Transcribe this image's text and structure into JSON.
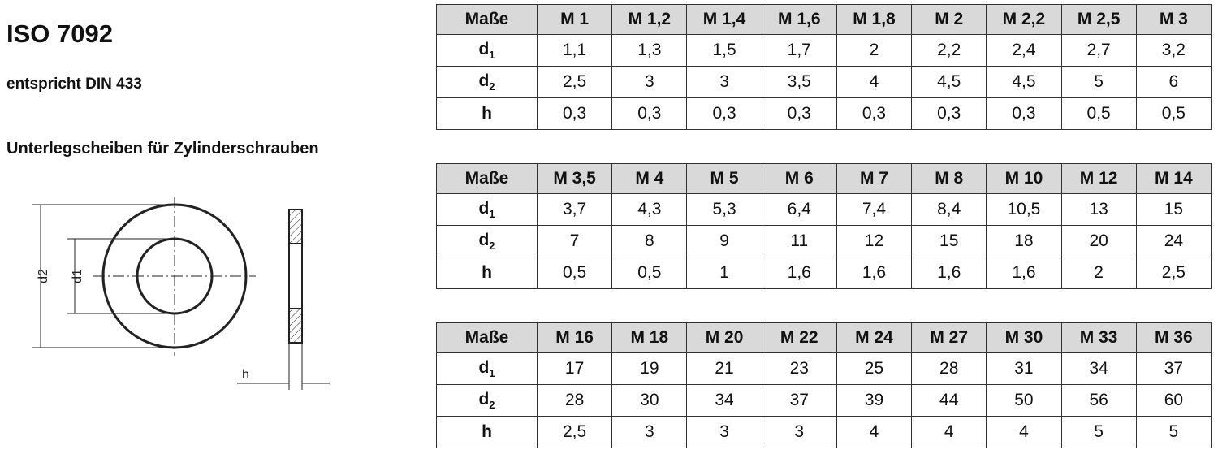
{
  "header": {
    "title": "ISO 7092",
    "subtitle": "entspricht DIN 433",
    "description": "Unterlegscheiben für Zylinderschrauben"
  },
  "drawing": {
    "labels": {
      "d2": "d2",
      "d1": "d1",
      "h": "h"
    }
  },
  "tables": [
    {
      "header": [
        "Maße",
        "M 1",
        "M 1,2",
        "M 1,4",
        "M 1,6",
        "M 1,8",
        "M 2",
        "M 2,2",
        "M 2,5",
        "M 3"
      ],
      "rows": [
        {
          "label": "d",
          "sub": "1",
          "values": [
            "1,1",
            "1,3",
            "1,5",
            "1,7",
            "2",
            "2,2",
            "2,4",
            "2,7",
            "3,2"
          ]
        },
        {
          "label": "d",
          "sub": "2",
          "values": [
            "2,5",
            "3",
            "3",
            "3,5",
            "4",
            "4,5",
            "4,5",
            "5",
            "6"
          ]
        },
        {
          "label": "h",
          "values": [
            "0,3",
            "0,3",
            "0,3",
            "0,3",
            "0,3",
            "0,3",
            "0,3",
            "0,5",
            "0,5"
          ]
        }
      ]
    },
    {
      "header": [
        "Maße",
        "M 3,5",
        "M 4",
        "M 5",
        "M 6",
        "M 7",
        "M 8",
        "M 10",
        "M 12",
        "M 14"
      ],
      "rows": [
        {
          "label": "d",
          "sub": "1",
          "values": [
            "3,7",
            "4,3",
            "5,3",
            "6,4",
            "7,4",
            "8,4",
            "10,5",
            "13",
            "15"
          ]
        },
        {
          "label": "d",
          "sub": "2",
          "values": [
            "7",
            "8",
            "9",
            "11",
            "12",
            "15",
            "18",
            "20",
            "24"
          ]
        },
        {
          "label": "h",
          "values": [
            "0,5",
            "0,5",
            "1",
            "1,6",
            "1,6",
            "1,6",
            "1,6",
            "2",
            "2,5"
          ]
        }
      ]
    },
    {
      "header": [
        "Maße",
        "M 16",
        "M 18",
        "M 20",
        "M 22",
        "M 24",
        "M 27",
        "M 30",
        "M 33",
        "M 36"
      ],
      "rows": [
        {
          "label": "d",
          "sub": "1",
          "values": [
            "17",
            "19",
            "21",
            "23",
            "25",
            "28",
            "31",
            "34",
            "37"
          ]
        },
        {
          "label": "d",
          "sub": "2",
          "values": [
            "28",
            "30",
            "34",
            "37",
            "39",
            "44",
            "50",
            "56",
            "60"
          ]
        },
        {
          "label": "h",
          "values": [
            "2,5",
            "3",
            "3",
            "3",
            "4",
            "4",
            "4",
            "5",
            "5"
          ]
        }
      ]
    }
  ]
}
